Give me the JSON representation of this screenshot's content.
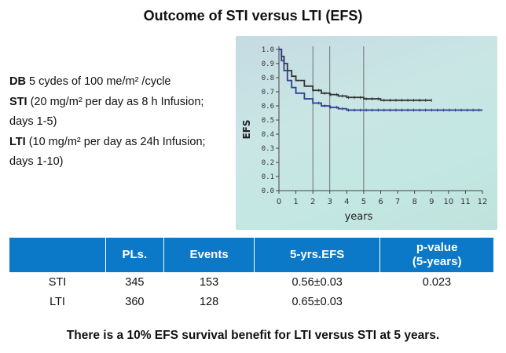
{
  "title": "Outcome of STI versus LTI (EFS)",
  "notes": [
    {
      "bold": "DB",
      "text": " 5 cydes of 100 me/m² /cycle"
    },
    {
      "bold": "STI",
      "text": " (20 mg/m² per day as 8 h Infusion;"
    },
    {
      "bold": "",
      "text": "days 1-5)"
    },
    {
      "bold": "LTI",
      "text": " (10 mg/m² per day as 24h Infusion;"
    },
    {
      "bold": "",
      "text": "days 1-10)"
    }
  ],
  "chart_data": {
    "type": "line",
    "title": "",
    "xlabel": "years",
    "ylabel": "EFS",
    "xlim": [
      0,
      12
    ],
    "ylim": [
      0,
      1.0
    ],
    "x_ticks": [
      "0",
      "1",
      "2",
      "3",
      "4",
      "5",
      "6",
      "7",
      "8",
      "9",
      "10",
      "11",
      "12"
    ],
    "y_ticks": [
      "0.0",
      "0.1",
      "0.2",
      "0.3",
      "0.4",
      "0.5",
      "0.6",
      "0.7",
      "0.8",
      "0.9",
      "1.0"
    ],
    "vertical_reference_lines": [
      2,
      3,
      5
    ],
    "colors": {
      "upper": "#333333",
      "lower": "#2e3f8f"
    },
    "series": [
      {
        "x": [
          0,
          0.15,
          0.3,
          0.5,
          0.75,
          1.0,
          1.5,
          2.0,
          2.5,
          3.0,
          3.5,
          4.0,
          4.5,
          5.0,
          5.5,
          6.0,
          7.0,
          8.0,
          9.0
        ],
        "values": [
          1.0,
          0.95,
          0.9,
          0.85,
          0.81,
          0.78,
          0.74,
          0.71,
          0.69,
          0.68,
          0.67,
          0.66,
          0.66,
          0.65,
          0.65,
          0.64,
          0.64,
          0.64,
          0.64
        ]
      },
      {
        "x": [
          0,
          0.15,
          0.3,
          0.5,
          0.75,
          1.0,
          1.5,
          2.0,
          2.5,
          3.0,
          3.5,
          4.0,
          5.0,
          6.0,
          8.0,
          10.0,
          12.0
        ],
        "values": [
          1.0,
          0.92,
          0.85,
          0.78,
          0.73,
          0.69,
          0.65,
          0.62,
          0.6,
          0.59,
          0.58,
          0.57,
          0.57,
          0.57,
          0.57,
          0.57,
          0.57
        ]
      }
    ]
  },
  "table": {
    "headers": [
      "",
      "PLs.",
      "Events",
      "5-yrs.EFS",
      "p-value\n(5-years)"
    ],
    "rows": [
      [
        "STI",
        "345",
        "153",
        "0.56±0.03",
        "0.023"
      ],
      [
        "LTI",
        "360",
        "128",
        "0.65±0.03",
        ""
      ]
    ]
  },
  "footer": "There is a 10% EFS survival benefit for LTI versus STI at 5 years."
}
